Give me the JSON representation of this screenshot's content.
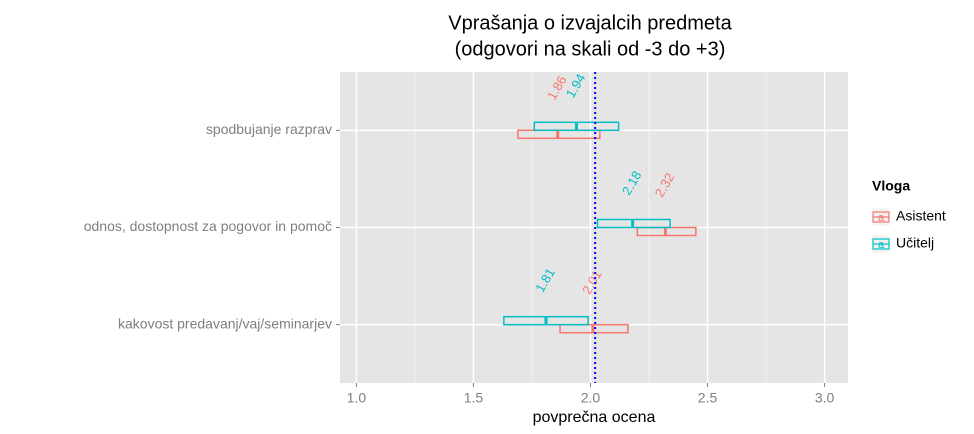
{
  "chart_data": {
    "type": "crossbar",
    "title": [
      "Vprašanja o izvajalcih predmeta",
      "(odgovori na skali od -3 do +3)"
    ],
    "x_label": "povprečna ocena",
    "categories": [
      "spodbujanje razprav",
      "odnos, dostopnost za pogovor in pomoč",
      "kakovost predavanj/vaj/seminarjev"
    ],
    "legend_title": "Vloga",
    "legend_key": "a",
    "series": [
      {
        "name": "Asistent",
        "color": "#F8766D",
        "values": [
          1.86,
          2.32,
          2.01
        ],
        "lower": [
          1.69,
          2.2,
          1.87
        ],
        "upper": [
          2.04,
          2.45,
          2.16
        ]
      },
      {
        "name": "Učitelj",
        "color": "#00BFC4",
        "values": [
          1.94,
          2.18,
          1.81
        ],
        "lower": [
          1.76,
          2.03,
          1.63
        ],
        "upper": [
          2.12,
          2.34,
          1.99
        ]
      }
    ],
    "reference_line": {
      "value": 2.02,
      "color": "#0000FF"
    },
    "xlim": [
      0.93,
      3.1
    ],
    "xticks": [
      {
        "value": 1,
        "label": "1.0"
      },
      1.5,
      {
        "value": 2,
        "label": "2.0"
      },
      2.5,
      {
        "value": 3,
        "label": "3.0"
      }
    ],
    "xminorticks": [
      1.25,
      1.75,
      2.25,
      2.75
    ],
    "grid": true
  }
}
